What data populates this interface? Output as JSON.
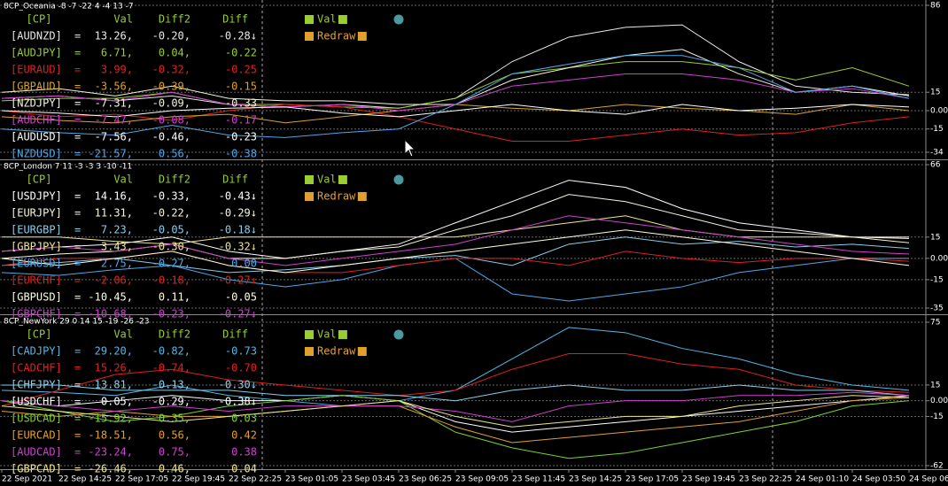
{
  "chart_data": [
    {
      "type": "line",
      "title": "8CP_Oceania -8 -7 -22 4 -4 13 -7",
      "ylim": [
        -34,
        86
      ],
      "yticks": [
        86,
        15,
        {
          "value": 0,
          "label": "0.00"
        },
        -15,
        -34
      ],
      "grid": true,
      "columns": [
        "[CP]",
        "Val",
        "Diff2",
        "Diff"
      ],
      "buttons": [
        "Val",
        "Redraw"
      ],
      "series": [
        {
          "name": "[AUDNZD]",
          "color": "#e8e8e8",
          "row": [
            "=",
            "13.26,",
            "-0.20,",
            "-0.28↓"
          ],
          "values": [
            10,
            12,
            8,
            12,
            5,
            3,
            5,
            2,
            10,
            40,
            60,
            68,
            70,
            40,
            20,
            15,
            13
          ]
        },
        {
          "name": "[AUDJPY]",
          "color": "#9acd32",
          "row": [
            "=",
            "6.71,",
            "0.04,",
            "-0.22"
          ],
          "values": [
            8,
            10,
            10,
            15,
            5,
            5,
            3,
            2,
            10,
            30,
            35,
            40,
            40,
            35,
            25,
            35,
            20
          ]
        },
        {
          "name": "[EURAUD]",
          "color": "#e02020",
          "row": [
            "=",
            "3.99,",
            "-0.32,",
            "-0.25"
          ],
          "values": [
            0,
            -5,
            -3,
            -8,
            0,
            5,
            3,
            -5,
            -15,
            -25,
            -25,
            -20,
            -15,
            -20,
            -18,
            -10,
            -5
          ]
        },
        {
          "name": "[GBPAUD]",
          "color": "#daa520",
          "row": [
            "=",
            "-3.56,",
            "-0.39,",
            "-0.15"
          ],
          "values": [
            -5,
            -8,
            -10,
            -5,
            -3,
            -10,
            -5,
            0,
            5,
            2,
            0,
            5,
            2,
            0,
            -3,
            5,
            0
          ]
        },
        {
          "name": "[NZDJPY]",
          "color": "#f5f5dc",
          "row": [
            "=",
            "-7.31,",
            "-0.09,",
            "-0.33"
          ],
          "values": [
            15,
            18,
            12,
            20,
            10,
            8,
            8,
            5,
            5,
            25,
            35,
            45,
            50,
            30,
            15,
            20,
            12
          ]
        },
        {
          "name": "[AUDCHF]",
          "color": "#d040d0",
          "row": [
            "=",
            "-7.47,",
            "-0.08,",
            "-0.17"
          ],
          "values": [
            10,
            12,
            8,
            15,
            5,
            3,
            5,
            0,
            5,
            20,
            25,
            30,
            30,
            25,
            15,
            18,
            10
          ]
        },
        {
          "name": "[AUDUSD]",
          "color": "#ffffff",
          "row": [
            "=",
            "-7.56,",
            "-0.46,",
            "-0.23"
          ],
          "values": [
            0,
            -2,
            -5,
            0,
            2,
            3,
            -2,
            -5,
            0,
            5,
            0,
            -3,
            5,
            0,
            2,
            5,
            3
          ]
        },
        {
          "name": "[NZDUSD]",
          "color": "#4fa8e8",
          "row": [
            "=",
            "-21.57,",
            "0.56,",
            "-0.38"
          ],
          "values": [
            -15,
            -18,
            -20,
            -12,
            -20,
            -22,
            -18,
            -15,
            5,
            30,
            38,
            45,
            45,
            35,
            15,
            20,
            10
          ]
        }
      ]
    },
    {
      "type": "line",
      "title": "8CP_London 7 11 -3 -3 3 -10 -11",
      "ylim": [
        -35,
        66
      ],
      "yticks": [
        66,
        15,
        {
          "value": 0,
          "label": "0.00"
        },
        -15,
        -35
      ],
      "grid": true,
      "columns": [
        "[CP]",
        "Val",
        "Diff2",
        "Diff"
      ],
      "buttons": [
        "Val",
        "Redraw"
      ],
      "series": [
        {
          "name": "[USDJPY]",
          "color": "#ffffff",
          "row": [
            "=",
            "14.16,",
            "-0.33,",
            "-0.43↓"
          ],
          "values": [
            5,
            8,
            10,
            15,
            5,
            0,
            5,
            10,
            25,
            40,
            55,
            50,
            35,
            25,
            20,
            15,
            14
          ]
        },
        {
          "name": "[EURJPY]",
          "color": "#f5f5dc",
          "row": [
            "=",
            "11.31,",
            "-0.22,",
            "-0.29↓"
          ],
          "values": [
            0,
            3,
            5,
            10,
            0,
            0,
            5,
            8,
            20,
            30,
            45,
            40,
            30,
            20,
            18,
            15,
            11
          ]
        },
        {
          "name": "[EURGBP]",
          "color": "#87ceeb",
          "row": [
            "=",
            "7.23,",
            "-0.05,",
            "-0.18↓"
          ],
          "values": [
            -5,
            -3,
            0,
            -5,
            -10,
            -8,
            -5,
            0,
            2,
            -5,
            10,
            15,
            10,
            12,
            8,
            10,
            7
          ]
        },
        {
          "name": "[GBPJPY]",
          "color": "#f0e68c",
          "row": [
            "=",
            "3.43,",
            "-0.30,",
            "-0.32↓"
          ],
          "values": [
            15,
            15,
            12,
            10,
            15,
            15,
            15,
            15,
            15,
            20,
            25,
            30,
            20,
            15,
            15,
            15,
            15
          ]
        },
        {
          "name": "[EURUSD]",
          "color": "#4fa8e8",
          "row": [
            "=",
            "2.75,",
            "-0.27,",
            "0.00"
          ],
          "values": [
            -10,
            -12,
            -8,
            -5,
            -15,
            -20,
            -15,
            -5,
            0,
            -25,
            -30,
            -25,
            -20,
            -10,
            -5,
            0,
            0
          ]
        },
        {
          "name": "[EURCHF]",
          "color": "#e02020",
          "row": [
            "=",
            "-2.06,",
            "-0.18,",
            "-0.27↓"
          ],
          "values": [
            -5,
            0,
            0,
            5,
            -5,
            -10,
            -10,
            -5,
            0,
            0,
            -5,
            5,
            0,
            -3,
            0,
            0,
            -2
          ]
        },
        {
          "name": "[GBPUSD]",
          "color": "#ffffe0",
          "row": [
            "=",
            "-10.45,",
            "0.11,",
            "-0.05"
          ],
          "values": [
            0,
            -5,
            0,
            5,
            -5,
            -10,
            -5,
            0,
            5,
            10,
            15,
            20,
            15,
            10,
            5,
            0,
            -5
          ]
        },
        {
          "name": "[GBPCHF]",
          "color": "#d040d0",
          "row": [
            "=",
            "-10.68,",
            "-0.23,",
            "-0.27↓"
          ],
          "values": [
            5,
            8,
            5,
            10,
            0,
            -5,
            0,
            5,
            10,
            20,
            30,
            25,
            20,
            15,
            10,
            5,
            3
          ]
        }
      ]
    },
    {
      "type": "line",
      "title": "8CP_NewYork 29 0 14 15 -19 -26 -23",
      "ylim": [
        -62,
        75
      ],
      "yticks": [
        75,
        15,
        {
          "value": 0,
          "label": "0.00"
        },
        -15,
        -62
      ],
      "grid": true,
      "columns": [
        "[CP]",
        "Val",
        "Diff2",
        "Diff"
      ],
      "buttons": [
        "Val",
        "Redraw"
      ],
      "categories": [
        "22 Sep 2021",
        "22 Sep 14:25",
        "22 Sep 17:05",
        "22 Sep 19:45",
        "22 Sep 22:25",
        "23 Sep 01:05",
        "23 Sep 03:45",
        "23 Sep 06:25",
        "23 Sep 09:05",
        "23 Sep 11:45",
        "23 Sep 14:25",
        "23 Sep 17:05",
        "23 Sep 19:45",
        "23 Sep 22:25",
        "24 Sep 01:10",
        "24 Sep 03:50",
        "24 Sep 06:"
      ],
      "series": [
        {
          "name": "[CADJPY]",
          "color": "#4fb8e8",
          "row": [
            "=",
            "29.20,",
            "-0.82,",
            "-0.73"
          ],
          "values": [
            10,
            8,
            5,
            15,
            5,
            0,
            -5,
            0,
            10,
            40,
            70,
            65,
            50,
            40,
            25,
            15,
            10
          ]
        },
        {
          "name": "[CADCHF]",
          "color": "#e02020",
          "row": [
            "=",
            "15.26,",
            "-0.74,",
            "-0.70"
          ],
          "values": [
            -5,
            10,
            25,
            30,
            20,
            15,
            10,
            5,
            10,
            30,
            45,
            45,
            35,
            30,
            15,
            10,
            8
          ]
        },
        {
          "name": "[CHFJPY]",
          "color": "#87ceeb",
          "row": [
            "=",
            "13.81,",
            "-0.13,",
            "-0.30↓"
          ],
          "values": [
            15,
            15,
            10,
            10,
            10,
            5,
            5,
            5,
            0,
            10,
            15,
            10,
            10,
            15,
            10,
            10,
            5
          ]
        },
        {
          "name": "[USDCHF]",
          "color": "#ffffff",
          "row": [
            "=",
            "0.05,",
            "-0.29,",
            "-0.38↓"
          ],
          "values": [
            0,
            -5,
            0,
            5,
            0,
            0,
            5,
            0,
            -20,
            -30,
            -25,
            -20,
            -15,
            -10,
            -5,
            0,
            5
          ]
        },
        {
          "name": "[USDCAD]",
          "color": "#7cd32a",
          "row": [
            "=",
            "-15.92,",
            "0.35,",
            "0.03"
          ],
          "values": [
            0,
            -10,
            -20,
            -15,
            -5,
            0,
            5,
            0,
            -30,
            -45,
            -55,
            -50,
            -40,
            -30,
            -20,
            -5,
            0
          ]
        },
        {
          "name": "[EURCAD]",
          "color": "#e0a030",
          "row": [
            "=",
            "-18.51,",
            "0.56,",
            "0.42"
          ],
          "values": [
            -10,
            -15,
            -10,
            -15,
            -15,
            -10,
            -5,
            -5,
            -25,
            -40,
            -35,
            -30,
            -25,
            -20,
            -10,
            0,
            3
          ]
        },
        {
          "name": "[AUDCAD]",
          "color": "#d040d0",
          "row": [
            "=",
            "-23.24,",
            "0.75,",
            "0.38"
          ],
          "values": [
            0,
            -5,
            -10,
            -5,
            -10,
            -5,
            -5,
            -5,
            -10,
            -20,
            -5,
            0,
            0,
            5,
            5,
            8,
            5
          ]
        },
        {
          "name": "[GBPCAD]",
          "color": "#f0e68c",
          "row": [
            "=",
            "-26.46,",
            "0.46,",
            "0.04"
          ],
          "values": [
            -5,
            -10,
            -15,
            -20,
            -15,
            -10,
            -5,
            0,
            -15,
            -25,
            -20,
            -15,
            -15,
            -5,
            0,
            5,
            3
          ]
        }
      ]
    }
  ]
}
